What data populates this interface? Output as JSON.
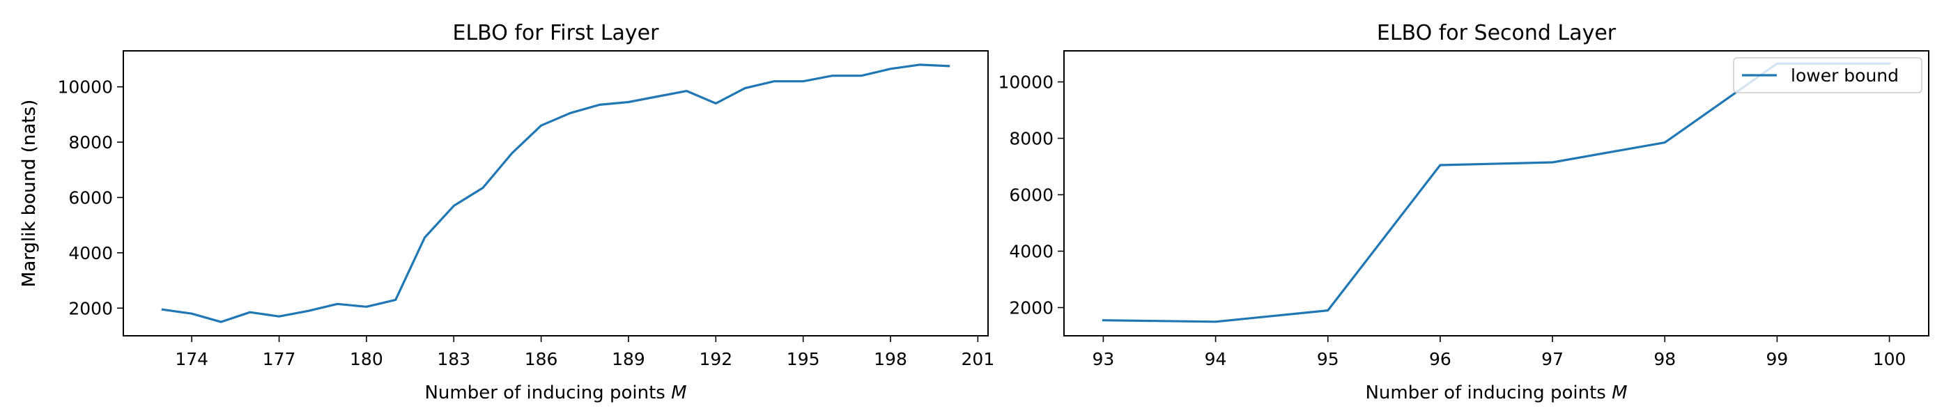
{
  "chart_data": [
    {
      "type": "line",
      "title": "ELBO for First Layer",
      "xlabel_main": "Number of inducing points ",
      "xlabel_var": "M",
      "ylabel": "Marglik bound (nats)",
      "xlim": [
        171.65,
        201.35
      ],
      "ylim": [
        1000,
        11300
      ],
      "xticks": [
        174,
        177,
        180,
        183,
        186,
        189,
        192,
        195,
        198,
        201
      ],
      "yticks": [
        2000,
        4000,
        6000,
        8000,
        10000
      ],
      "grid": false,
      "color": "#1f77b4",
      "series": [
        {
          "x": [
            173,
            174,
            175,
            176,
            177,
            178,
            179,
            180,
            181,
            182,
            183,
            184,
            185,
            186,
            187,
            188,
            189,
            190,
            191,
            192,
            193,
            194,
            195,
            196,
            197,
            198,
            199,
            200
          ],
          "values": [
            1950,
            1800,
            1500,
            1850,
            1700,
            1900,
            2150,
            2050,
            2300,
            4550,
            5700,
            6350,
            7600,
            8600,
            9050,
            9350,
            9450,
            9650,
            9850,
            9400,
            9950,
            10200,
            10200,
            10400,
            10400,
            10650,
            10800,
            10750
          ]
        }
      ]
    },
    {
      "type": "line",
      "title": "ELBO for Second Layer",
      "xlabel_main": "Number of inducing points ",
      "xlabel_var": "M",
      "ylabel": "Marglik bound (nats)",
      "xlim": [
        92.65,
        100.35
      ],
      "ylim": [
        1000,
        11100
      ],
      "xticks": [
        93,
        94,
        95,
        96,
        97,
        98,
        99,
        100
      ],
      "yticks": [
        2000,
        4000,
        6000,
        8000,
        10000
      ],
      "grid": false,
      "legend": "top-right",
      "color": "#1f77b4",
      "series": [
        {
          "name": "lower bound",
          "x": [
            93,
            94,
            95,
            96,
            97,
            98,
            99,
            100
          ],
          "values": [
            1550,
            1500,
            1900,
            7050,
            7150,
            7850,
            10650,
            10650
          ]
        }
      ]
    }
  ]
}
